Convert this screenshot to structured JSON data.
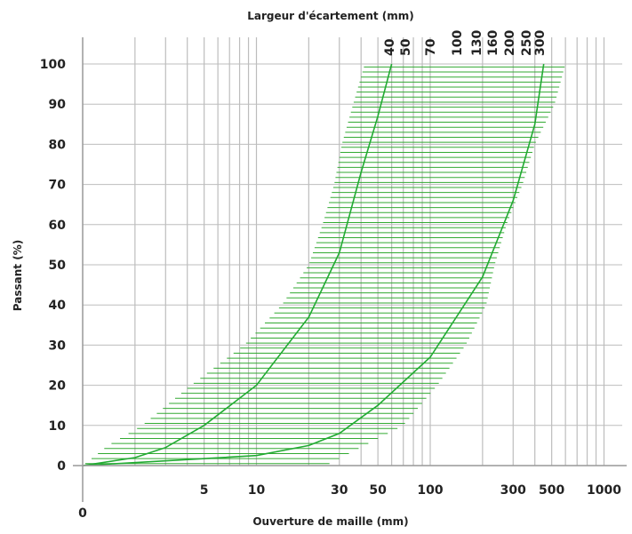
{
  "chart_data": {
    "type": "line",
    "top_axis_label": "Largeur d'écartement (mm)",
    "xlabel": "Ouverture de maille (mm)",
    "ylabel": "Passant (%)",
    "x_scale": "log",
    "xlim": [
      1,
      1000
    ],
    "ylim": [
      0,
      100
    ],
    "grid": true,
    "x_tick_labels": [
      {
        "value": 1,
        "label": "0"
      },
      {
        "value": 5,
        "label": "5"
      },
      {
        "value": 10,
        "label": "10"
      },
      {
        "value": 30,
        "label": "30"
      },
      {
        "value": 50,
        "label": "50"
      },
      {
        "value": 100,
        "label": "100"
      },
      {
        "value": 300,
        "label": "300"
      },
      {
        "value": 500,
        "label": "500"
      },
      {
        "value": 1000,
        "label": "1000"
      }
    ],
    "top_tick_labels": [
      {
        "value": 58,
        "label": "40"
      },
      {
        "value": 72,
        "label": "50"
      },
      {
        "value": 100,
        "label": "70"
      },
      {
        "value": 142,
        "label": "100"
      },
      {
        "value": 185,
        "label": "130"
      },
      {
        "value": 228,
        "label": "160"
      },
      {
        "value": 285,
        "label": "200"
      },
      {
        "value": 356,
        "label": "250"
      },
      {
        "value": 427,
        "label": "300"
      }
    ],
    "y_ticks": [
      0,
      10,
      20,
      30,
      40,
      50,
      60,
      70,
      80,
      90,
      100
    ],
    "series": [
      {
        "points": [
          [
            1,
            0
          ],
          [
            2,
            2
          ],
          [
            3,
            4.5
          ],
          [
            5,
            10
          ],
          [
            10,
            20
          ],
          [
            20,
            37
          ],
          [
            30,
            53
          ],
          [
            40,
            73
          ],
          [
            50,
            87
          ],
          [
            60,
            100
          ]
        ]
      },
      {
        "points": [
          [
            1,
            0
          ],
          [
            10,
            2.5
          ],
          [
            20,
            5
          ],
          [
            30,
            8
          ],
          [
            50,
            15
          ],
          [
            100,
            27
          ],
          [
            200,
            47
          ],
          [
            300,
            66
          ],
          [
            400,
            85
          ],
          [
            450,
            100
          ]
        ]
      }
    ],
    "band_left_edge": [
      [
        1,
        0
      ],
      [
        1.4,
        5
      ],
      [
        2.2,
        10
      ],
      [
        4.2,
        20
      ],
      [
        8.5,
        30
      ],
      [
        14,
        40
      ],
      [
        20,
        50
      ],
      [
        24,
        60
      ],
      [
        28,
        70
      ],
      [
        31,
        80
      ],
      [
        36,
        90
      ],
      [
        42,
        100
      ]
    ],
    "band_right_edge": [
      [
        25,
        0
      ],
      [
        70,
        10
      ],
      [
        110,
        20
      ],
      [
        160,
        30
      ],
      [
        210,
        40
      ],
      [
        235,
        50
      ],
      [
        275,
        60
      ],
      [
        340,
        70
      ],
      [
        400,
        80
      ],
      [
        520,
        90
      ],
      [
        600,
        100
      ]
    ],
    "colors": {
      "curve": "#22aa33",
      "band": "#33aa33",
      "grid": "#bdbdbd",
      "axis": "#999999"
    }
  }
}
